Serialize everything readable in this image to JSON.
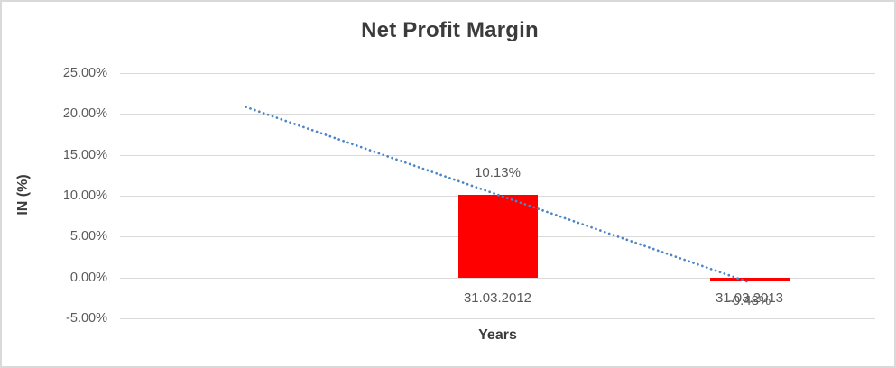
{
  "window": {
    "background": "#ffffff",
    "border_color": "#d9d9d9"
  },
  "chart_data": {
    "type": "bar",
    "title": "Net Profit Margin",
    "xlabel": "Years",
    "ylabel": "IN (%)",
    "categories": [
      "",
      "31.03.2012",
      "31.03.2013"
    ],
    "values": [
      null,
      10.13,
      -0.48
    ],
    "value_labels": [
      "",
      "10.13%",
      "-0.48%"
    ],
    "ylim": [
      -5,
      25
    ],
    "ytick_step": 5,
    "yticks": [
      {
        "value": 25,
        "label": "25.00%"
      },
      {
        "value": 20,
        "label": "20.00%"
      },
      {
        "value": 15,
        "label": "15.00%"
      },
      {
        "value": 10,
        "label": "10.00%"
      },
      {
        "value": 5,
        "label": "5.00%"
      },
      {
        "value": 0,
        "label": "0.00%"
      },
      {
        "value": -5,
        "label": "-5.00%"
      }
    ],
    "grid": true,
    "legend": false,
    "colors": {
      "bar": "#ff0000",
      "trendline": "#4a86c8",
      "gridline": "#d9d9d9",
      "title_text": "#3b3b3b",
      "axis_text": "#595959"
    },
    "trendline": {
      "type": "linear",
      "style": "dotted",
      "start": {
        "category_index": 0,
        "value": 20.85
      },
      "end": {
        "category_index": 2,
        "value": -0.6
      }
    }
  }
}
